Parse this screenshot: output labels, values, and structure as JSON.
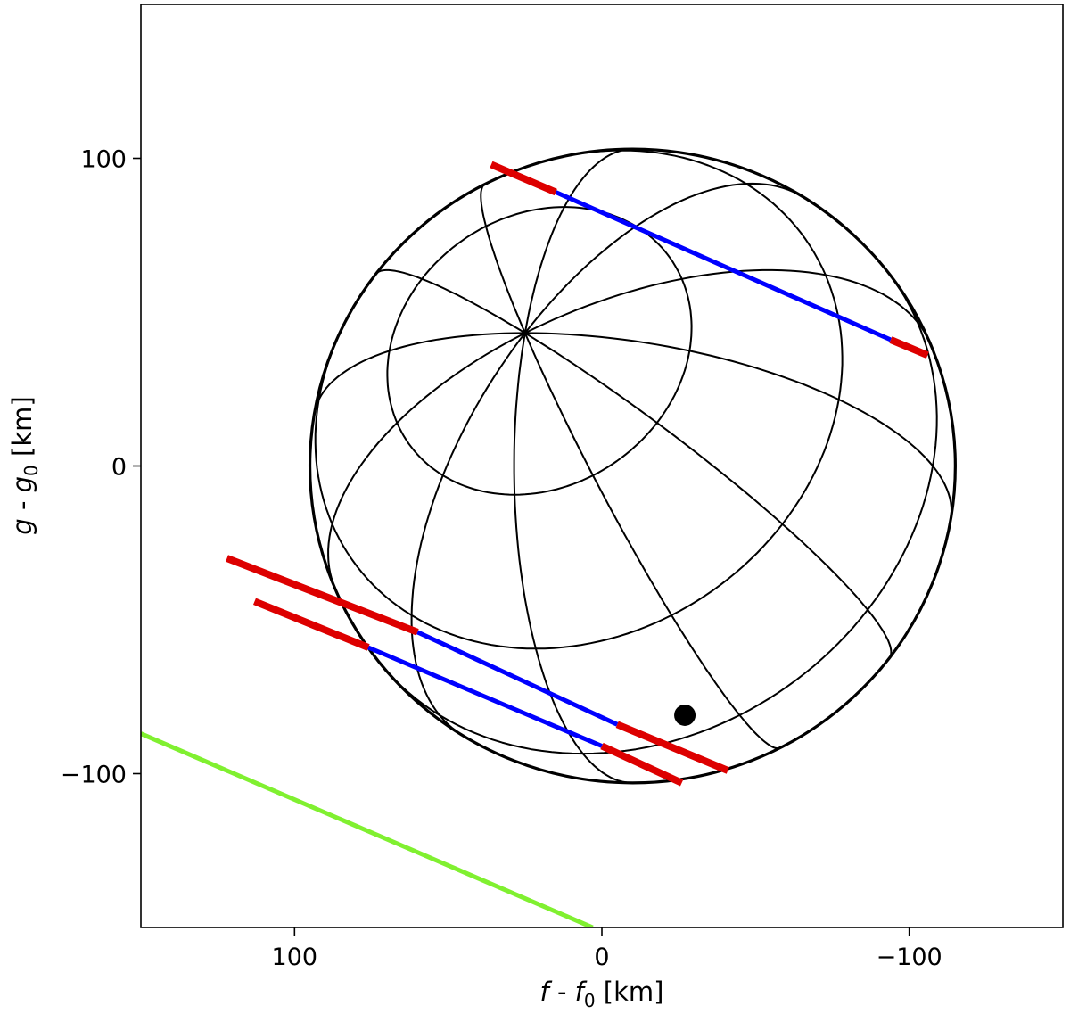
{
  "chart_data": {
    "type": "line",
    "title": "",
    "xlabel": "f - f0 [km]",
    "ylabel": "g - g0 [km]",
    "xlabel_parts": {
      "v1": "f",
      "mid": " - ",
      "v2": "f",
      "sub": "0",
      "unit": " [km]"
    },
    "ylabel_parts": {
      "v1": "g",
      "mid": " - ",
      "v2": "g",
      "sub": "0",
      "unit": " [km]"
    },
    "xlim": [
      150,
      -150
    ],
    "ylim": [
      -150,
      150
    ],
    "x_inverted": true,
    "grid": false,
    "xticks": [
      {
        "value": 100,
        "label": "100"
      },
      {
        "value": 0,
        "label": "0"
      },
      {
        "value": -100,
        "label": "−100"
      }
    ],
    "yticks": [
      {
        "value": 100,
        "label": "100"
      },
      {
        "value": 0,
        "label": "0"
      },
      {
        "value": -100,
        "label": "−100"
      }
    ],
    "body_model": {
      "shape": "ellipsoid",
      "limb_color": "#000000",
      "meridian_color": "#000000",
      "approx_center": [
        -10,
        0
      ],
      "approx_semi_axes": [
        105,
        103
      ],
      "pole": [
        25,
        44
      ],
      "marked_point": [
        -27,
        -81
      ]
    },
    "series": [
      {
        "color": "#0000ff",
        "segments": [
          {
            "x": [
              15,
              -94
            ],
            "y": [
              89,
              41
            ]
          },
          {
            "x": [
              60,
              -5
            ],
            "y": [
              -54,
              -84
            ]
          },
          {
            "x": [
              76,
              0
            ],
            "y": [
              -59,
              -91
            ]
          }
        ]
      },
      {
        "color": "#dd0000",
        "segments": [
          {
            "x": [
              36,
              15
            ],
            "y": [
              98,
              89
            ]
          },
          {
            "x": [
              -94,
              -106
            ],
            "y": [
              41,
              36
            ]
          },
          {
            "x": [
              122,
              60
            ],
            "y": [
              -30,
              -54
            ]
          },
          {
            "x": [
              -5,
              -41
            ],
            "y": [
              -84,
              -99
            ]
          },
          {
            "x": [
              113,
              76
            ],
            "y": [
              -44,
              -59
            ]
          },
          {
            "x": [
              0,
              -26
            ],
            "y": [
              -91,
              -103
            ]
          }
        ]
      },
      {
        "color": "#80f030",
        "segments": [
          {
            "x": [
              150,
              3
            ],
            "y": [
              -87,
              -150
            ]
          }
        ]
      }
    ]
  }
}
